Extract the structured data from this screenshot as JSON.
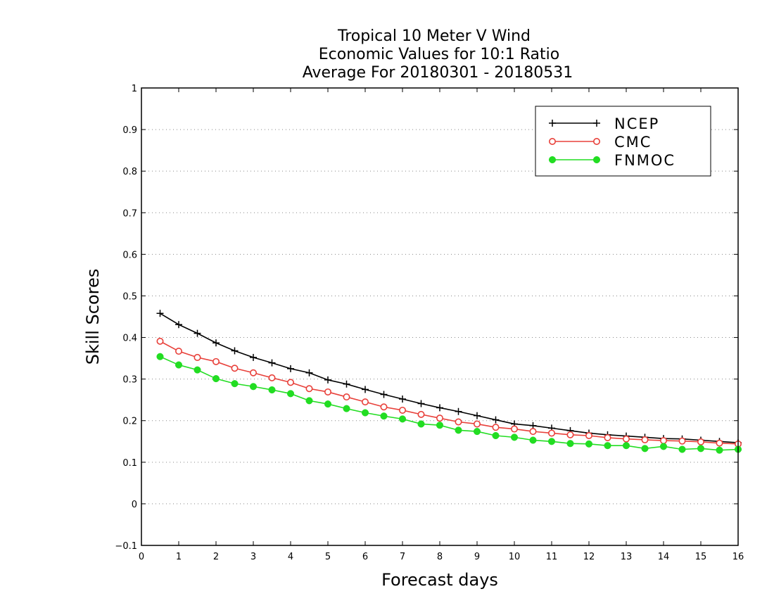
{
  "chart_data": {
    "type": "line",
    "title": [
      "Tropical 10 Meter V Wind",
      "Economic Values for 10:1 Ratio",
      "Average For 20180301 - 20180531"
    ],
    "xlabel": "Forecast days",
    "ylabel": "Skill Scores",
    "xlim": [
      0,
      16
    ],
    "ylim": [
      -0.1,
      1
    ],
    "xticks": [
      0,
      1,
      2,
      3,
      4,
      5,
      6,
      7,
      8,
      9,
      10,
      11,
      12,
      13,
      14,
      15,
      16
    ],
    "yticks": [
      -0.1,
      0,
      0.1,
      0.2,
      0.3,
      0.4,
      0.5,
      0.6,
      0.7,
      0.8,
      0.9,
      1
    ],
    "ytick_labels": [
      "−0.1",
      "0",
      "0.1",
      "0.2",
      "0.3",
      "0.4",
      "0.5",
      "0.6",
      "0.7",
      "0.8",
      "0.9",
      "1"
    ],
    "grid": "horizontal dotted",
    "legend_position": "top-right",
    "x": [
      0.5,
      1,
      1.5,
      2,
      2.5,
      3,
      3.5,
      4,
      4.5,
      5,
      5.5,
      6,
      6.5,
      7,
      7.5,
      8,
      8.5,
      9,
      9.5,
      10,
      10.5,
      11,
      11.5,
      12,
      12.5,
      13,
      13.5,
      14,
      14.5,
      15,
      15.5,
      16
    ],
    "series": [
      {
        "name": "NCEP",
        "color": "#000000",
        "marker": "plus",
        "values": [
          0.458,
          0.431,
          0.41,
          0.387,
          0.368,
          0.352,
          0.339,
          0.325,
          0.315,
          0.298,
          0.288,
          0.275,
          0.263,
          0.252,
          0.241,
          0.231,
          0.222,
          0.212,
          0.202,
          0.192,
          0.188,
          0.182,
          0.176,
          0.17,
          0.166,
          0.163,
          0.16,
          0.157,
          0.156,
          0.153,
          0.15,
          0.147
        ]
      },
      {
        "name": "CMC",
        "color": "#e8403a",
        "marker": "open-circle",
        "values": [
          0.391,
          0.367,
          0.352,
          0.342,
          0.326,
          0.315,
          0.303,
          0.292,
          0.277,
          0.269,
          0.257,
          0.245,
          0.233,
          0.225,
          0.215,
          0.206,
          0.197,
          0.192,
          0.184,
          0.18,
          0.174,
          0.17,
          0.166,
          0.164,
          0.159,
          0.156,
          0.154,
          0.152,
          0.151,
          0.149,
          0.146,
          0.144
        ]
      },
      {
        "name": "FNMOC",
        "color": "#22dd22",
        "marker": "filled-circle",
        "values": [
          0.354,
          0.334,
          0.322,
          0.301,
          0.289,
          0.282,
          0.274,
          0.265,
          0.248,
          0.24,
          0.229,
          0.219,
          0.211,
          0.204,
          0.192,
          0.189,
          0.177,
          0.174,
          0.164,
          0.16,
          0.153,
          0.15,
          0.145,
          0.144,
          0.14,
          0.14,
          0.133,
          0.138,
          0.131,
          0.133,
          0.129,
          0.131
        ]
      }
    ]
  }
}
